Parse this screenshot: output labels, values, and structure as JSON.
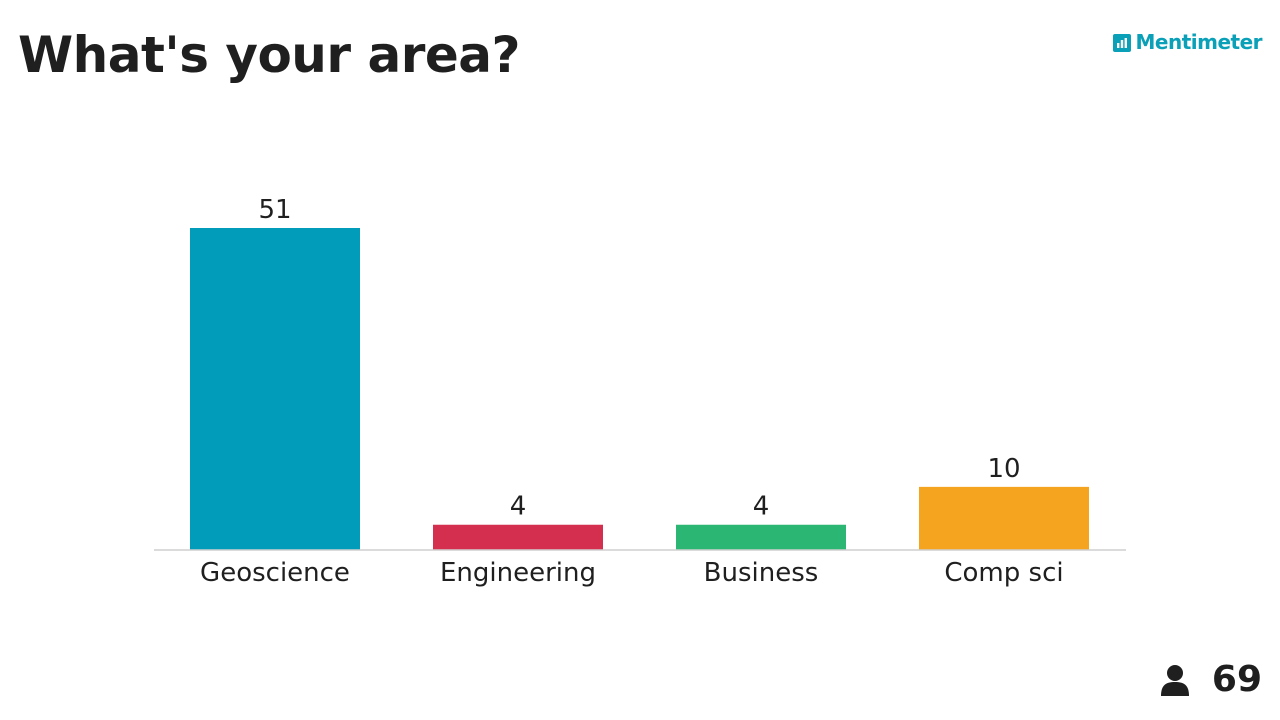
{
  "title": "What's your area?",
  "brand": {
    "name": "Mentimeter",
    "color": "#0aa0b8",
    "icon": "bar-chart-logo-icon"
  },
  "participants": {
    "icon": "person-icon",
    "count": "69"
  },
  "chart_data": {
    "type": "bar",
    "title": "",
    "xlabel": "",
    "ylabel": "",
    "categories": [
      "Geoscience",
      "Engineering",
      "Business",
      "Comp sci"
    ],
    "values": [
      51,
      4,
      4,
      10
    ],
    "colors": [
      "#009cba",
      "#d42f4e",
      "#2bb673",
      "#f4a41e"
    ],
    "ylim": [
      0,
      51
    ],
    "grid": false,
    "legend": "none"
  }
}
